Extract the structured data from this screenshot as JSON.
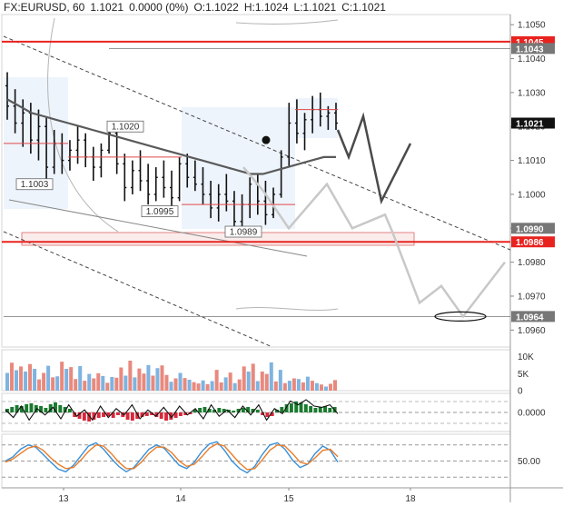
{
  "header": {
    "symbol": "FX:EURUSD, 60",
    "last": "1.1021",
    "change": "0.0000 (0%)",
    "open": "O:1.1022",
    "high": "H:1.1024",
    "low": "L:1.1021",
    "close": "C:1.1021"
  },
  "colors": {
    "up": "#1a7a2e",
    "down": "#d8283a",
    "level_line": "#e8231f",
    "ma_line": "#5a5a5a",
    "projection_dark": "#4a4a4a",
    "projection_light": "#c8c8c8",
    "volume_up": "#7fb3e0",
    "volume_down": "#e8897e",
    "stoch_k": "#3a8fd6",
    "stoch_d": "#e87d2a"
  },
  "chart_data": [
    {
      "type": "line",
      "panel": "price",
      "symbol": "FX:EURUSD",
      "timeframe": "60",
      "x_ticks": [
        "13",
        "14",
        "15",
        "18"
      ],
      "y_ticks": [
        "1.1050",
        "1.1040",
        "1.1030",
        "1.1020",
        "1.1010",
        "1.1000",
        "1.0990",
        "1.0980",
        "1.0970",
        "1.0960"
      ],
      "ylim": [
        1.0955,
        1.1053
      ],
      "axis_tags": [
        {
          "label": "1.1045",
          "value": 1.1045,
          "style": "red"
        },
        {
          "label": "1.1043",
          "value": 1.1043,
          "style": "gray"
        },
        {
          "label": "1.1021",
          "value": 1.1021,
          "style": "black"
        },
        {
          "label": "1.0990",
          "value": 1.099,
          "style": "gray"
        },
        {
          "label": "1.0986",
          "value": 1.0986,
          "style": "red"
        },
        {
          "label": "1.0964",
          "value": 1.0964,
          "style": "gray"
        }
      ],
      "annotations": [
        {
          "label": "1.1020",
          "value": 1.102
        },
        {
          "label": "1.1003",
          "value": 1.1003
        },
        {
          "label": "1.0995",
          "value": 1.0995
        },
        {
          "label": "1.0989",
          "value": 1.0989
        }
      ],
      "levels": [
        1.1045,
        1.0986
      ],
      "candles": [
        [
          1.1032,
          1.1036,
          1.1022,
          1.1026
        ],
        [
          1.1026,
          1.1031,
          1.1018,
          1.1021
        ],
        [
          1.1021,
          1.1028,
          1.1014,
          1.1024
        ],
        [
          1.1024,
          1.1027,
          1.1012,
          1.1016
        ],
        [
          1.1016,
          1.1025,
          1.101,
          1.102
        ],
        [
          1.102,
          1.1023,
          1.1003,
          1.1008
        ],
        [
          1.1008,
          1.1019,
          1.1006,
          1.1015
        ],
        [
          1.1015,
          1.1018,
          1.1006,
          1.101
        ],
        [
          1.101,
          1.1016,
          1.1007,
          1.1013
        ],
        [
          1.1013,
          1.102,
          1.1009,
          1.1016
        ],
        [
          1.1016,
          1.1018,
          1.1008,
          1.1011
        ],
        [
          1.1011,
          1.1014,
          1.1004,
          1.1008
        ],
        [
          1.1008,
          1.1015,
          1.1005,
          1.1013
        ],
        [
          1.1013,
          1.102,
          1.1012,
          1.1018
        ],
        [
          1.1018,
          1.1019,
          1.1006,
          1.1009
        ],
        [
          1.1009,
          1.1012,
          1.0998,
          1.1002
        ],
        [
          1.1002,
          1.101,
          1.1,
          1.1007
        ],
        [
          1.1007,
          1.1013,
          1.1001,
          1.1004
        ],
        [
          1.1004,
          1.1009,
          1.0997,
          1.1
        ],
        [
          1.1,
          1.1008,
          1.0998,
          1.1005
        ],
        [
          1.1005,
          1.101,
          1.0999,
          1.1002
        ],
        [
          1.1002,
          1.1007,
          1.0996,
          1.0999
        ],
        [
          1.0999,
          1.1011,
          1.0998,
          1.1009
        ],
        [
          1.1009,
          1.1012,
          1.1002,
          1.1005
        ],
        [
          1.1005,
          1.101,
          1.1001,
          1.1003
        ],
        [
          1.1003,
          1.1008,
          1.0997,
          1.1
        ],
        [
          1.1,
          1.1004,
          1.0993,
          1.0996
        ],
        [
          1.0996,
          1.1003,
          1.0992,
          1.1
        ],
        [
          1.1,
          1.1006,
          1.0995,
          1.0998
        ],
        [
          1.0998,
          1.1001,
          1.0989,
          1.0992
        ],
        [
          1.0992,
          1.1,
          1.099,
          1.0997
        ],
        [
          1.0997,
          1.1005,
          1.0993,
          1.1003
        ],
        [
          1.1003,
          1.1006,
          1.0994,
          1.0998
        ],
        [
          1.0998,
          1.1004,
          1.0991,
          1.0994
        ],
        [
          1.0994,
          1.1002,
          1.0993,
          1.1
        ],
        [
          1.1,
          1.1013,
          1.0999,
          1.1011
        ],
        [
          1.1011,
          1.1027,
          1.1008,
          1.1021
        ],
        [
          1.1021,
          1.1028,
          1.1015,
          1.1018
        ],
        [
          1.1018,
          1.1024,
          1.1013,
          1.1022
        ],
        [
          1.1022,
          1.1029,
          1.1018,
          1.1025
        ],
        [
          1.1025,
          1.103,
          1.102,
          1.1023
        ],
        [
          1.1023,
          1.1026,
          1.1019,
          1.1024
        ],
        [
          1.1024,
          1.1027,
          1.1019,
          1.1021
        ]
      ],
      "moving_average": [
        1.1028,
        1.1026,
        1.1024,
        1.1023,
        1.1022,
        1.1021,
        1.102,
        1.1019,
        1.1018,
        1.1017,
        1.1016,
        1.1015,
        1.1014,
        1.1013,
        1.1012,
        1.1011,
        1.101,
        1.1009,
        1.1008,
        1.1007,
        1.1006,
        1.1006,
        1.1007,
        1.1008,
        1.1009,
        1.101,
        1.1011,
        1.1011
      ],
      "projection_dark": [
        1.1019,
        1.1011,
        1.1023,
        1.0998,
        1.1015
      ],
      "projection_light": [
        1.1008,
        1.1001,
        1.099,
        1.1003,
        1.099,
        1.0994,
        1.0989,
        1.0968,
        1.0973,
        1.0964,
        1.098
      ]
    },
    {
      "type": "bar",
      "panel": "volume",
      "y_ticks": [
        "10K",
        "5K",
        "0"
      ],
      "ylim": [
        0,
        12000
      ],
      "values": [
        5200,
        8200,
        6000,
        7100,
        5600,
        7800,
        6400,
        3300,
        5200,
        7300,
        3900,
        4200,
        8500,
        6400,
        6900,
        3400,
        7200,
        2900,
        4900,
        3600,
        5100,
        4300,
        2300,
        4000,
        3800,
        6800,
        4400,
        8800,
        3900,
        6500,
        5000,
        7500,
        4400,
        6600,
        7400,
        4600,
        2600,
        3600,
        5200,
        3700,
        3200,
        2500,
        2100,
        3000,
        1900,
        2800,
        6100,
        2400,
        3900,
        5300,
        2200,
        3300,
        7100,
        5600,
        7900,
        2800,
        5600,
        4900,
        8300,
        2700,
        6100,
        2200,
        2900,
        3600,
        3400,
        2400,
        4100,
        2900,
        2200,
        1800,
        1200,
        2000,
        3100
      ],
      "directions": [
        "up",
        "down",
        "up",
        "down",
        "up",
        "down",
        "up",
        "down",
        "down",
        "up",
        "down",
        "up",
        "down",
        "up",
        "down",
        "down",
        "up",
        "down",
        "up",
        "down",
        "down",
        "up",
        "down",
        "up",
        "down",
        "down",
        "up",
        "down",
        "up",
        "down",
        "down",
        "up",
        "down",
        "up",
        "down",
        "down",
        "up",
        "down",
        "up",
        "down",
        "up",
        "down",
        "down",
        "up",
        "down",
        "up",
        "down",
        "down",
        "up",
        "down",
        "up",
        "down",
        "down",
        "up",
        "down",
        "up",
        "down",
        "down",
        "up",
        "down",
        "up",
        "down",
        "up",
        "down",
        "up",
        "down",
        "up",
        "down",
        "up",
        "down",
        "up",
        "down",
        "down"
      ]
    },
    {
      "type": "bar",
      "panel": "macd_histogram",
      "y_ticks": [
        "0.0000"
      ],
      "values": [
        0.4,
        0.6,
        0.8,
        0.7,
        0.9,
        1.0,
        0.8,
        0.7,
        0.5,
        0.9,
        1.1,
        0.8,
        0.6,
        0.4,
        -0.5,
        -0.7,
        -0.9,
        -1.0,
        -0.8,
        -0.6,
        -0.5,
        -0.4,
        -0.6,
        -0.3,
        -0.5,
        -0.8,
        -0.9,
        -0.7,
        -0.5,
        -0.4,
        -0.3,
        -0.5,
        -0.7,
        -0.9,
        -0.8,
        -0.6,
        -0.4,
        -0.3,
        -0.2,
        0.3,
        0.5,
        0.6,
        0.4,
        0.3,
        0.5,
        0.4,
        0.3,
        0.2,
        0.4,
        0.5,
        0.6,
        0.4,
        0.3,
        -0.3,
        -0.5,
        -0.4,
        0.3,
        0.6,
        0.9,
        1.0,
        1.2,
        1.1,
        0.9,
        0.7,
        0.5,
        0.6,
        0.7,
        0.5,
        0.6
      ],
      "signal_line": [
        0.2,
        -0.4,
        0.5,
        -0.6,
        0.3,
        -0.2,
        0.4,
        -0.5,
        0.6,
        -0.3,
        0.2,
        -0.6,
        0.5,
        -0.4,
        0.3,
        -0.2,
        0.6,
        -0.5,
        0.2,
        -0.3,
        0.4,
        -0.4,
        0.5,
        -0.2,
        0.3,
        -0.5,
        0.6,
        -0.3,
        0.2,
        -0.4,
        0.5,
        -0.2,
        0.6,
        -0.6,
        0.3,
        -0.1,
        0.9,
        0.6,
        1.0,
        0.5,
        0.4,
        0.6,
        -0.1
      ]
    },
    {
      "type": "line",
      "panel": "stochastic",
      "y_ticks": [
        "50.00"
      ],
      "series": [
        {
          "values": [
            50,
            58,
            72,
            80,
            76,
            62,
            48,
            35,
            30,
            42,
            60,
            78,
            84,
            72,
            55,
            40,
            30,
            38,
            55,
            72,
            80,
            74,
            58,
            42,
            36,
            48,
            68,
            82,
            86,
            70,
            50,
            36,
            28,
            40,
            62,
            80,
            84,
            72,
            52,
            38,
            44,
            64,
            78,
            70,
            48
          ]
        },
        {
          "values": [
            48,
            54,
            64,
            74,
            78,
            70,
            56,
            44,
            36,
            38,
            52,
            68,
            80,
            78,
            64,
            48,
            36,
            36,
            48,
            64,
            76,
            76,
            66,
            50,
            40,
            44,
            58,
            74,
            82,
            78,
            62,
            46,
            34,
            36,
            52,
            70,
            80,
            78,
            64,
            48,
            44,
            56,
            70,
            72,
            58
          ]
        }
      ]
    }
  ]
}
